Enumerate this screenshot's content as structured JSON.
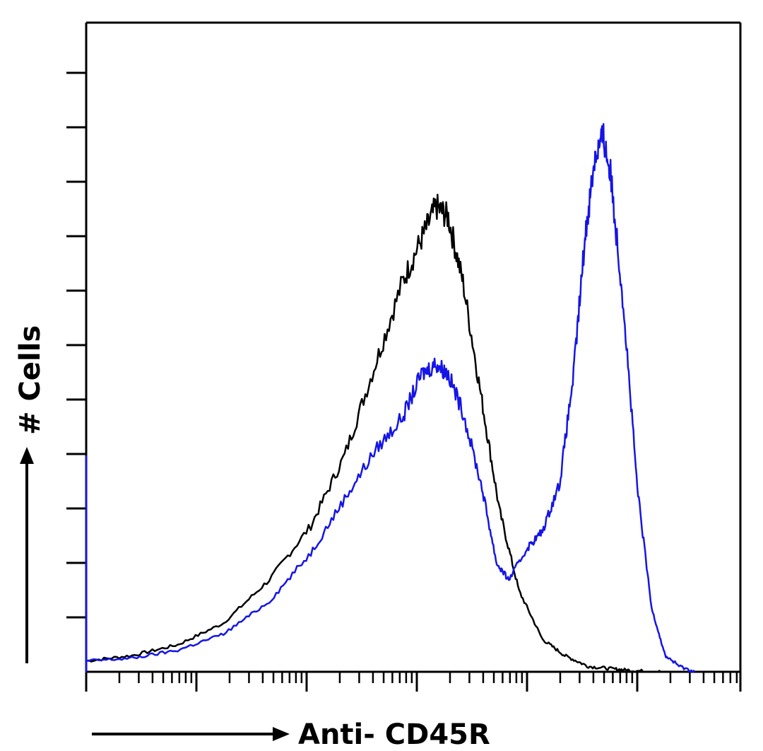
{
  "chart_data": {
    "type": "line",
    "title": "",
    "xlabel": "Anti- CD45R",
    "ylabel": "# Cells",
    "x_scale": "log",
    "xlim": [
      0.5,
      10000
    ],
    "ylim": [
      0,
      120
    ],
    "grid": false,
    "legend": "none",
    "series": [
      {
        "color": "#000000",
        "points": [
          [
            0.5,
            2
          ],
          [
            1,
            3
          ],
          [
            2,
            5
          ],
          [
            4,
            9
          ],
          [
            8,
            17
          ],
          [
            15,
            27
          ],
          [
            25,
            40
          ],
          [
            40,
            57
          ],
          [
            60,
            72
          ],
          [
            80,
            80
          ],
          [
            100,
            86
          ],
          [
            120,
            84
          ],
          [
            150,
            72
          ],
          [
            200,
            50
          ],
          [
            260,
            30
          ],
          [
            350,
            15
          ],
          [
            500,
            6
          ],
          [
            700,
            3
          ],
          [
            1000,
            1
          ],
          [
            1500,
            0.5
          ],
          [
            2000,
            0.2
          ],
          [
            3000,
            0
          ]
        ]
      },
      {
        "color": "#1515e6",
        "points": [
          [
            0.5,
            2
          ],
          [
            1,
            2.5
          ],
          [
            2,
            4
          ],
          [
            4,
            7
          ],
          [
            8,
            13
          ],
          [
            15,
            22
          ],
          [
            25,
            32
          ],
          [
            40,
            41
          ],
          [
            60,
            47
          ],
          [
            80,
            55
          ],
          [
            100,
            57
          ],
          [
            120,
            55
          ],
          [
            150,
            48
          ],
          [
            200,
            34
          ],
          [
            250,
            20
          ],
          [
            300,
            17
          ],
          [
            400,
            23
          ],
          [
            500,
            26
          ],
          [
            650,
            35
          ],
          [
            800,
            55
          ],
          [
            950,
            80
          ],
          [
            1100,
            95
          ],
          [
            1250,
            99
          ],
          [
            1400,
            92
          ],
          [
            1700,
            68
          ],
          [
            2100,
            34
          ],
          [
            2600,
            12
          ],
          [
            3200,
            3
          ],
          [
            4000,
            1
          ],
          [
            5000,
            0
          ]
        ]
      }
    ]
  }
}
